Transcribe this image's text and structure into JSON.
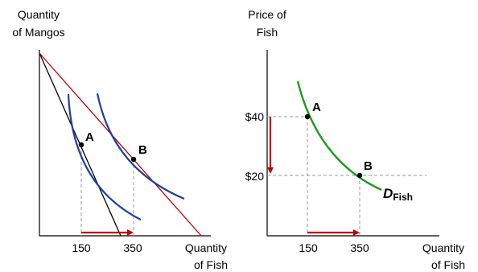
{
  "left_panel": {
    "y_axis_label_line1": "Quantity",
    "y_axis_label_line2": "of Mangos",
    "x_axis_label_line1": "Quantity",
    "x_axis_label_line2": "of Fish",
    "tick_1": "150",
    "tick_2": "350",
    "point_a": "A",
    "point_b": "B"
  },
  "right_panel": {
    "y_axis_label_line1": "Price of",
    "y_axis_label_line2": "Fish",
    "x_axis_label_line1": "Quantity",
    "x_axis_label_line2": "of Fish",
    "price_high": "$40",
    "price_low": "$20",
    "tick_1": "150",
    "tick_2": "350",
    "point_a": "A",
    "point_b": "B",
    "demand_label": "D",
    "demand_subscript": "Fish"
  },
  "colors": {
    "axis": "#000000",
    "budget_line_original": "#000000",
    "budget_line_new": "#c00000",
    "indifference_curve": "#1f3f9f",
    "demand_curve": "#1a9a1a",
    "arrow": "#c00000",
    "guide_line": "#999999"
  }
}
